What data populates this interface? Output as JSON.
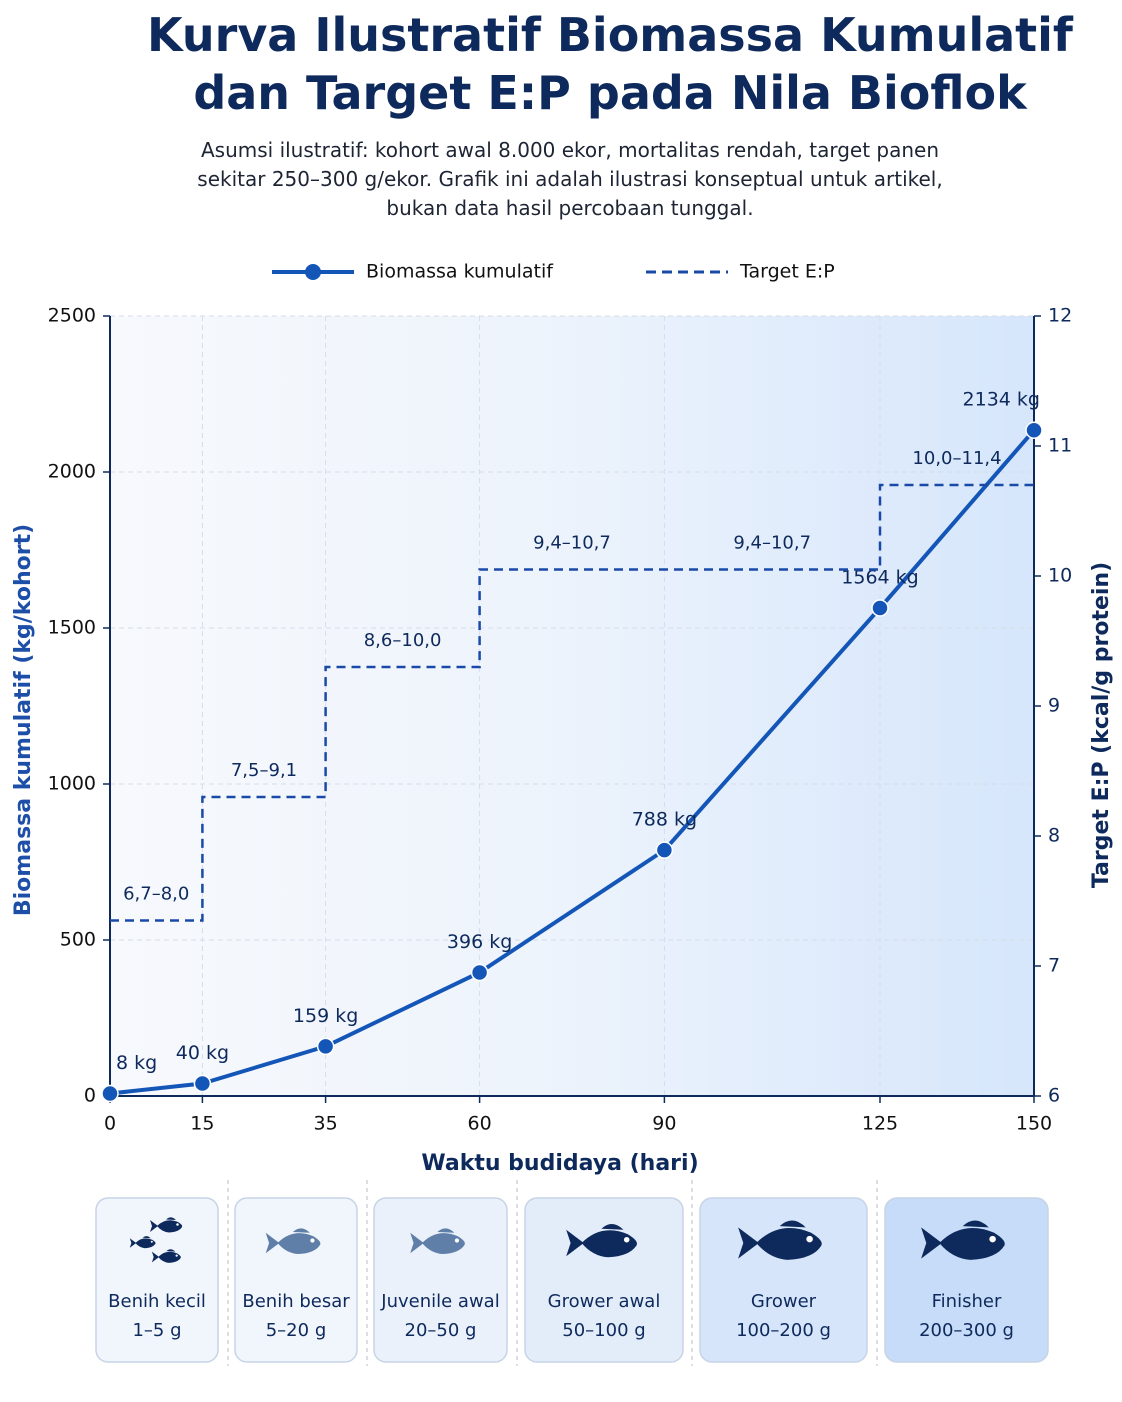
{
  "chart_data": {
    "type": "line",
    "title": "Kurva Ilustratif Biomassa Kumulatif dan Target E:P pada Nila Bioflok",
    "subtitle": "Asumsi ilustratif: kohort awal 8.000 ekor, mortalitas rendah, target panen sekitar 250–300 g/ekor. Grafik ini adalah ilustrasi konseptual untuk artikel, bukan data hasil percobaan tunggal.",
    "xlabel": "Waktu budidaya (hari)",
    "ylabel": "Biomassa kumulatif (kg/kohort)",
    "y2label": "Target E:P (kcal/g protein)",
    "x": [
      0,
      15,
      35,
      60,
      90,
      125,
      150
    ],
    "xlim": [
      0,
      150
    ],
    "xticks": [
      0,
      15,
      35,
      60,
      90,
      125,
      150
    ],
    "ylim": [
      0,
      2500
    ],
    "yticks": [
      0,
      500,
      1000,
      1500,
      2000,
      2500
    ],
    "y2lim": [
      6,
      12
    ],
    "y2ticks": [
      6,
      7,
      8,
      9,
      10,
      11,
      12
    ],
    "grid": true,
    "series": [
      {
        "name": "Biomassa kumulatif",
        "color": "#1456b8",
        "values": [
          8,
          40,
          159,
          396,
          788,
          1564,
          2134
        ],
        "value_labels": [
          "8 kg",
          "40 kg",
          "159 kg",
          "396 kg",
          "788 kg",
          "1564 kg",
          "2134 kg"
        ]
      },
      {
        "name": "Target E:P",
        "color": "#1a4aa8",
        "axis": "y2",
        "style": "dashed",
        "segments": [
          {
            "start": 0,
            "end": 15,
            "low": 6.7,
            "high": 8.0,
            "label": "6,7–8,0"
          },
          {
            "start": 15,
            "end": 35,
            "low": 7.5,
            "high": 9.1,
            "label": "7,5–9,1"
          },
          {
            "start": 35,
            "end": 60,
            "low": 8.6,
            "high": 10.0,
            "label": "8,6–10,0"
          },
          {
            "start": 60,
            "end": 90,
            "low": 9.4,
            "high": 10.7,
            "label": "9,4–10,7"
          },
          {
            "start": 90,
            "end": 125,
            "low": 9.4,
            "high": 10.7,
            "label": "9,4–10,7"
          },
          {
            "start": 125,
            "end": 150,
            "low": 10.0,
            "high": 11.4,
            "label": "10,0–11,4"
          }
        ]
      }
    ]
  },
  "stages": [
    {
      "name": "Benih kecil",
      "size": "1–5 g"
    },
    {
      "name": "Benih besar",
      "size": "5–20 g"
    },
    {
      "name": "Juvenile awal",
      "size": "20–50 g"
    },
    {
      "name": "Grower awal",
      "size": "50–100 g"
    },
    {
      "name": "Grower",
      "size": "100–200 g"
    },
    {
      "name": "Finisher",
      "size": "200–300 g"
    }
  ]
}
